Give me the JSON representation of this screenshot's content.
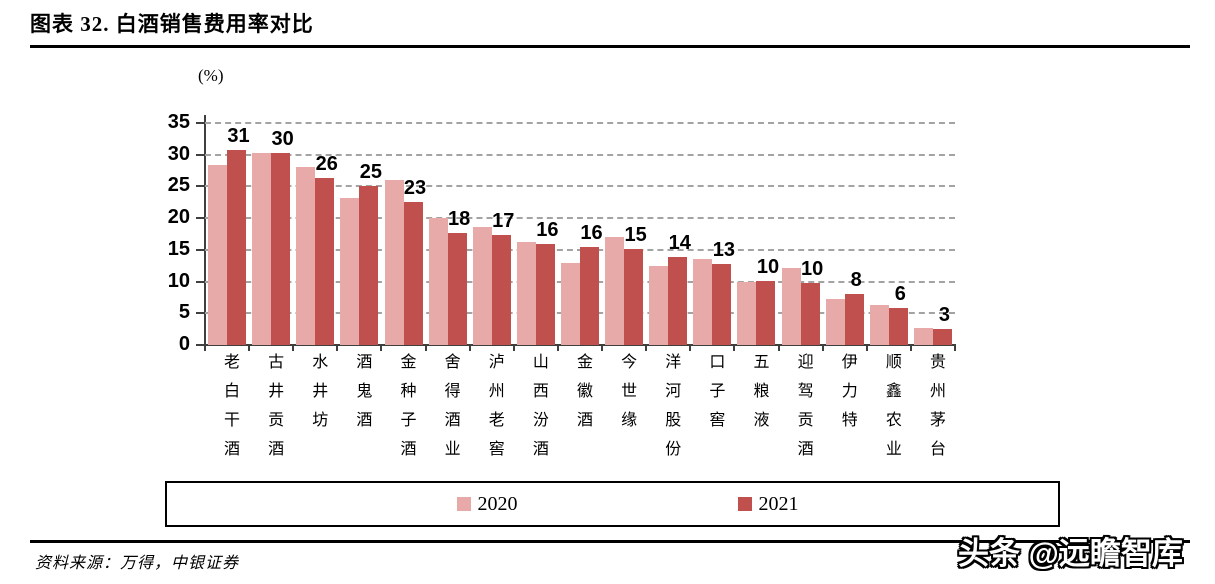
{
  "header": {
    "title": "图表 32. 白酒销售费用率对比"
  },
  "footer": {
    "source": "资料来源：万得，中银证券",
    "watermark": "头条 @远瞻智库"
  },
  "chart_data": {
    "type": "bar",
    "title": "白酒销售费用率对比",
    "unit_label": "(%)",
    "categories": [
      "老白干酒",
      "古井贡酒",
      "水井坊",
      "酒鬼酒",
      "金种子酒",
      "舍得酒业",
      "泸州老窖",
      "山西汾酒",
      "金徽酒",
      "今世缘",
      "洋河股份",
      "口子窖",
      "五粮液",
      "迎驾贡酒",
      "伊力特",
      "顺鑫农业",
      "贵州茅台"
    ],
    "series": [
      {
        "name": "2020",
        "color": "#E8A9A9",
        "values": [
          28.4,
          30.3,
          28.0,
          23.1,
          26.0,
          20.0,
          18.6,
          16.2,
          12.9,
          17.1,
          12.4,
          13.5,
          9.9,
          12.2,
          7.2,
          6.3,
          2.7
        ]
      },
      {
        "name": "2021",
        "color": "#C0504D",
        "values": [
          30.8,
          30.2,
          26.4,
          25.1,
          22.5,
          17.7,
          17.4,
          15.9,
          15.5,
          15.1,
          13.9,
          12.8,
          10.1,
          9.8,
          8.1,
          5.9,
          2.6
        ]
      }
    ],
    "data_labels": [
      "31",
      "30",
      "26",
      "25",
      "23",
      "18",
      "17",
      "16",
      "16",
      "15",
      "14",
      "13",
      "10",
      "10",
      "8",
      "6",
      "3"
    ],
    "data_labels_on_series": "2021",
    "ylim": [
      0,
      35
    ],
    "yticks": [
      0,
      5,
      10,
      15,
      20,
      25,
      30,
      35
    ],
    "grid": "horizontal-dashed",
    "legend_position": "bottom-box",
    "legend": [
      "2020",
      "2021"
    ]
  }
}
